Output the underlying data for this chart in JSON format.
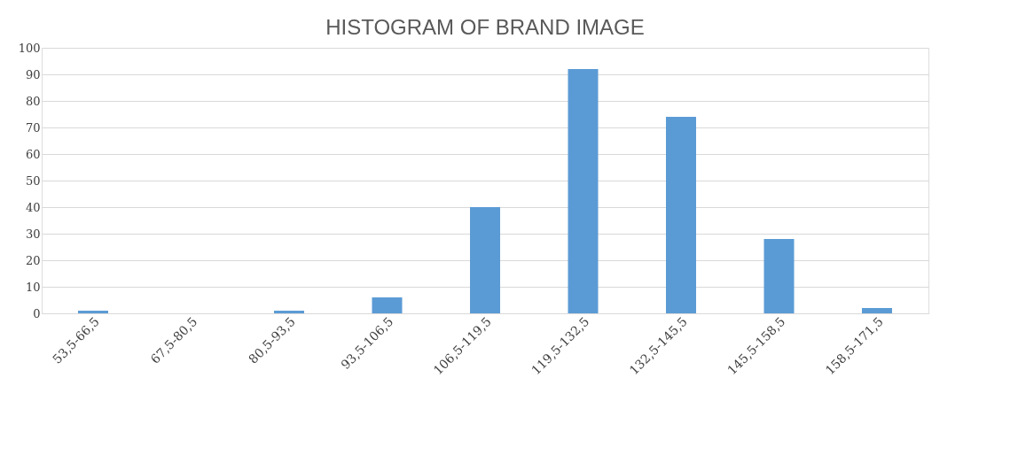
{
  "chart_data": {
    "type": "bar",
    "title": "HISTOGRAM OF BRAND IMAGE",
    "categories": [
      "53,5-66,5",
      "67,5-80,5",
      "80,5-93,5",
      "93,5-106,5",
      "106,5-119,5",
      "119,5-132,5",
      "132,5-145,5",
      "145,5-158,5",
      "158,5-171,5"
    ],
    "values": [
      1,
      0,
      1,
      6,
      40,
      92,
      74,
      28,
      2
    ],
    "color": "#5b9bd5",
    "ylim": [
      0,
      100
    ],
    "yticks": [
      0,
      10,
      20,
      30,
      40,
      50,
      60,
      70,
      80,
      90,
      100
    ],
    "grid": "y"
  }
}
